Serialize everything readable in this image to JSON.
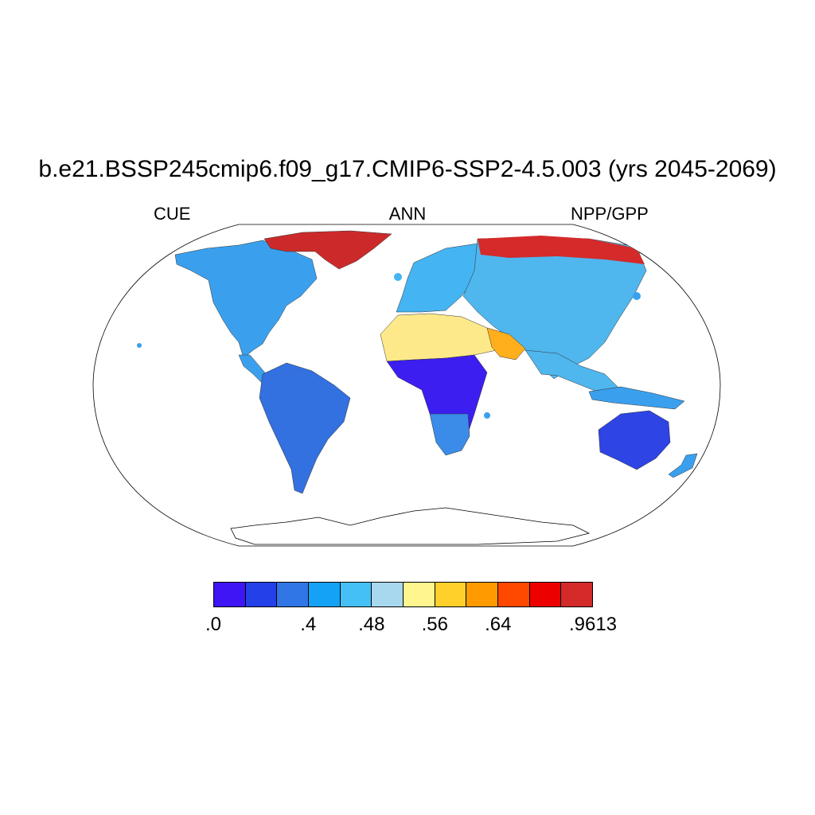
{
  "title": "b.e21.BSSP245cmip6.f09_g17.CMIP6-SSP2-4.5.003 (yrs 2045-2069)",
  "subtitle_left": "CUE",
  "subtitle_center": "ANN",
  "subtitle_right": "NPP/GPP",
  "colorbar": {
    "colors": [
      "#3f14f5",
      "#2440e8",
      "#3076e6",
      "#13a2f6",
      "#44c0f6",
      "#a8d8ee",
      "#fff68f",
      "#ffd02a",
      "#ff9a00",
      "#ff4800",
      "#ec0000",
      "#d42a2a"
    ],
    "labels": [
      {
        "text": ".0",
        "boundary": 0
      },
      {
        "text": ".4",
        "boundary": 3
      },
      {
        "text": ".48",
        "boundary": 5
      },
      {
        "text": ".56",
        "boundary": 7
      },
      {
        "text": ".64",
        "boundary": 9
      },
      {
        "text": ".9613",
        "boundary": 12
      }
    ]
  },
  "map": {
    "projection": "Robinson",
    "continent_fill": {
      "north_america": "#3aa0ee",
      "greenland": "#cc2a2a",
      "south_america": "#3370e0",
      "europe": "#44b4f2",
      "asia": "#4fb6ee",
      "sahara": "#fde98a",
      "central_africa": "#3c1ef0",
      "southern_africa": "#3a8ce8",
      "australia": "#2e44e4",
      "siberia_north": "#d42a2a",
      "arabia": "#ffae1c"
    }
  }
}
